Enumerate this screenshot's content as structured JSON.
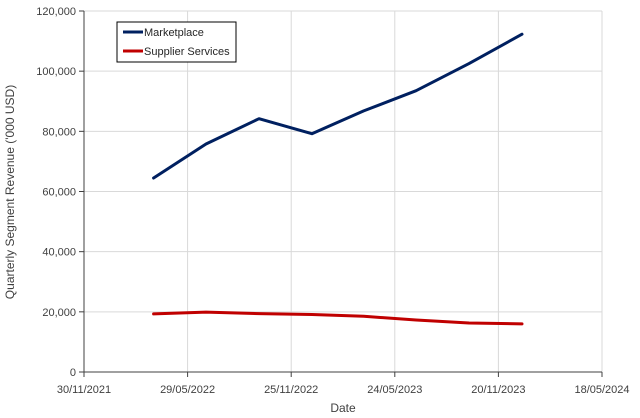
{
  "chart_data": {
    "type": "line",
    "title": "",
    "xlabel": "Date",
    "ylabel": "Quarterly Segment Revenue ('000 USD)",
    "x_tick_labels": [
      "30/11/2021",
      "29/05/2022",
      "25/11/2022",
      "24/05/2023",
      "20/11/2023",
      "18/05/2024"
    ],
    "x_ticks": [
      "2021-11-30",
      "2022-05-29",
      "2022-11-25",
      "2023-05-24",
      "2023-11-20",
      "2024-05-18"
    ],
    "xlim": [
      "2021-11-30",
      "2024-05-18"
    ],
    "y_tick_labels": [
      "0",
      "20,000",
      "40,000",
      "60,000",
      "80,000",
      "100,000",
      "120,000"
    ],
    "y_ticks": [
      0,
      20000,
      40000,
      60000,
      80000,
      100000,
      120000
    ],
    "ylim": [
      0,
      120000
    ],
    "grid": true,
    "legend_position": "top-left",
    "series": [
      {
        "name": "Marketplace",
        "color": "#002060",
        "x": [
          "2022-03-31",
          "2022-06-30",
          "2022-09-30",
          "2022-12-31",
          "2023-03-31",
          "2023-06-30",
          "2023-09-30",
          "2023-12-31"
        ],
        "values": [
          64500,
          75800,
          84200,
          79200,
          86800,
          93500,
          102500,
          112300
        ]
      },
      {
        "name": "Supplier Services",
        "color": "#C00000",
        "x": [
          "2022-03-31",
          "2022-06-30",
          "2022-09-30",
          "2022-12-31",
          "2023-03-31",
          "2023-06-30",
          "2023-09-30",
          "2023-12-31"
        ],
        "values": [
          19300,
          19900,
          19400,
          19100,
          18500,
          17300,
          16300,
          16000
        ]
      }
    ]
  }
}
